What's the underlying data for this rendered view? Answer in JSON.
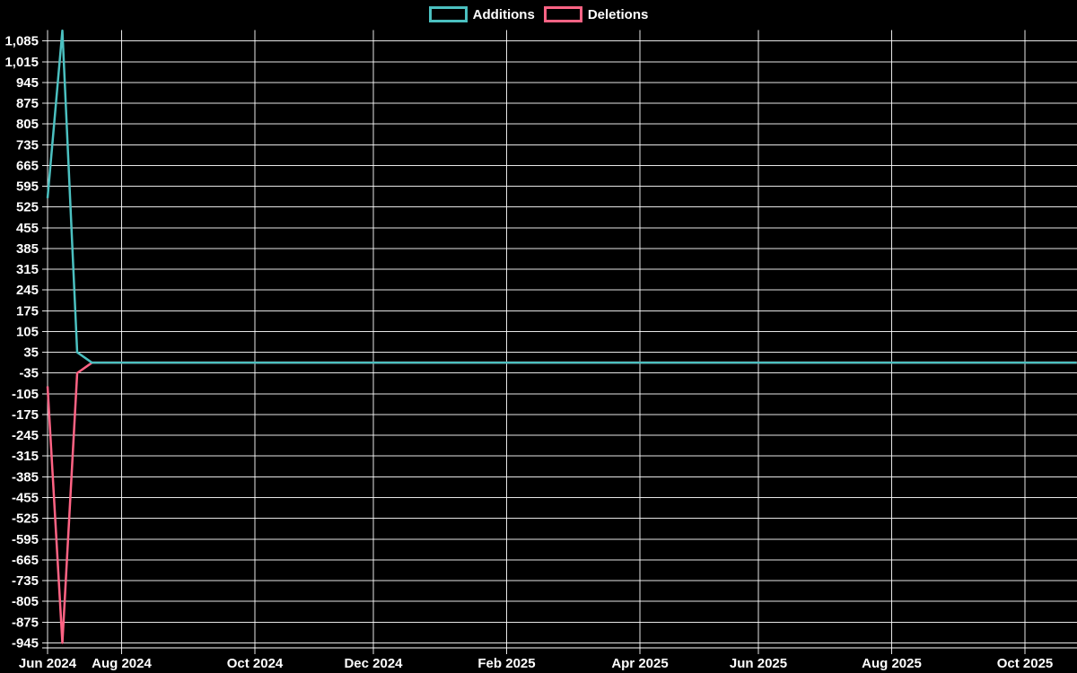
{
  "page": {
    "background_color": "#000000"
  },
  "chart_data": {
    "type": "line",
    "title": "",
    "legend_position": "top-center",
    "background_color": "#000000",
    "text_color": "#ffffff",
    "grid": true,
    "grid_color": "rgba(255,255,255,0.9)",
    "x_axis": {
      "unit": "week_index",
      "range_weeks": [
        0,
        69.5
      ],
      "ticks": [
        {
          "label": "Jun 2024",
          "week": 0
        },
        {
          "label": "Aug 2024",
          "week": 5
        },
        {
          "label": "Oct 2024",
          "week": 14
        },
        {
          "label": "Dec 2024",
          "week": 22
        },
        {
          "label": "Feb 2025",
          "week": 31
        },
        {
          "label": "Apr 2025",
          "week": 40
        },
        {
          "label": "Jun 2025",
          "week": 48
        },
        {
          "label": "Aug 2025",
          "week": 57
        },
        {
          "label": "Oct 2025",
          "week": 66
        }
      ]
    },
    "y_axis": {
      "range": [
        -962,
        1122
      ],
      "tick_step": 70,
      "ticks": [
        {
          "v": 1085,
          "label": "1,085"
        },
        {
          "v": 1015,
          "label": "1,015"
        },
        {
          "v": 945,
          "label": "945"
        },
        {
          "v": 875,
          "label": "875"
        },
        {
          "v": 805,
          "label": "805"
        },
        {
          "v": 735,
          "label": "735"
        },
        {
          "v": 665,
          "label": "665"
        },
        {
          "v": 595,
          "label": "595"
        },
        {
          "v": 525,
          "label": "525"
        },
        {
          "v": 455,
          "label": "455"
        },
        {
          "v": 385,
          "label": "385"
        },
        {
          "v": 315,
          "label": "315"
        },
        {
          "v": 245,
          "label": "245"
        },
        {
          "v": 175,
          "label": "175"
        },
        {
          "v": 105,
          "label": "105"
        },
        {
          "v": 35,
          "label": "35"
        },
        {
          "v": -35,
          "label": "-35"
        },
        {
          "v": -105,
          "label": "-105"
        },
        {
          "v": -175,
          "label": "-175"
        },
        {
          "v": -245,
          "label": "-245"
        },
        {
          "v": -315,
          "label": "-315"
        },
        {
          "v": -385,
          "label": "-385"
        },
        {
          "v": -455,
          "label": "-455"
        },
        {
          "v": -525,
          "label": "-525"
        },
        {
          "v": -595,
          "label": "-595"
        },
        {
          "v": -665,
          "label": "-665"
        },
        {
          "v": -735,
          "label": "-735"
        },
        {
          "v": -805,
          "label": "-805"
        },
        {
          "v": -875,
          "label": "-875"
        },
        {
          "v": -945,
          "label": "-945"
        }
      ]
    },
    "series": [
      {
        "name": "Additions",
        "color": "#4bc0c0",
        "points": [
          {
            "week": 0,
            "value": 555
          },
          {
            "week": 1,
            "value": 1120
          },
          {
            "week": 2,
            "value": 35
          },
          {
            "week": 3,
            "value": 0
          },
          {
            "week": 69.5,
            "value": 0
          }
        ]
      },
      {
        "name": "Deletions",
        "color": "#ff6384",
        "points": [
          {
            "week": 0,
            "value": -80
          },
          {
            "week": 1,
            "value": -945
          },
          {
            "week": 2,
            "value": -35
          },
          {
            "week": 3,
            "value": 0
          },
          {
            "week": 69.5,
            "value": 0
          }
        ]
      }
    ]
  }
}
